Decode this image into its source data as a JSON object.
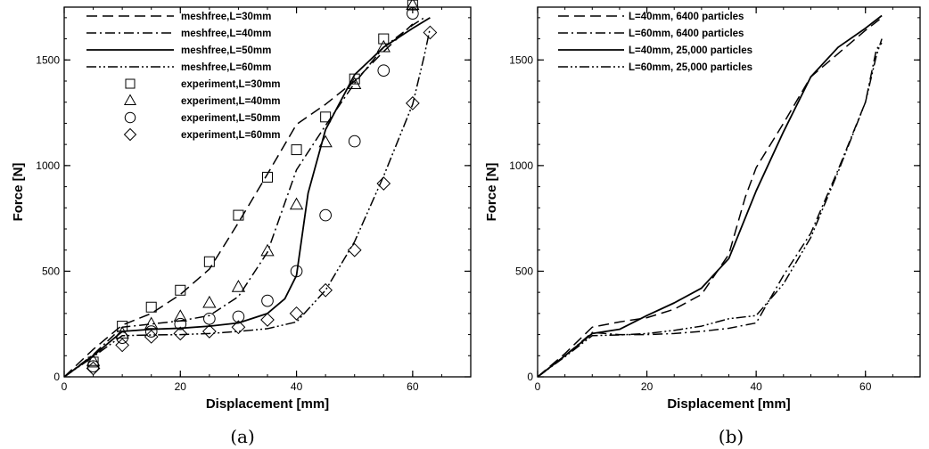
{
  "chart_data": [
    {
      "type": "line",
      "panel_label": "(a)",
      "xlabel": "Displacement [mm]",
      "ylabel": "Force [N]",
      "xlim": [
        0,
        70
      ],
      "ylim": [
        0,
        1750
      ],
      "xticks": [
        0,
        20,
        40,
        60
      ],
      "yticks": [
        0,
        500,
        1000,
        1500
      ],
      "minor_x_step": 5,
      "minor_y_step": 100,
      "legend_position": "top-left",
      "series": [
        {
          "name": "meshfree,L=30mm",
          "style": "dashed",
          "x": [
            0,
            5,
            10,
            15,
            20,
            25,
            30,
            35,
            40,
            45,
            50,
            55,
            60
          ],
          "y": [
            0,
            130,
            245,
            300,
            390,
            510,
            730,
            960,
            1195,
            1290,
            1400,
            1540,
            1670
          ]
        },
        {
          "name": "meshfree,L=40mm",
          "style": "dashdot",
          "x": [
            0,
            5,
            10,
            15,
            20,
            25,
            30,
            35,
            40,
            45,
            50,
            55,
            60,
            62
          ],
          "y": [
            0,
            105,
            235,
            250,
            265,
            290,
            380,
            590,
            980,
            1190,
            1390,
            1560,
            1665,
            1700
          ]
        },
        {
          "name": "meshfree,L=50mm",
          "style": "solid",
          "x": [
            0,
            5,
            10,
            15,
            20,
            25,
            30,
            35,
            38,
            40,
            42,
            45,
            50,
            55,
            60,
            63
          ],
          "y": [
            0,
            100,
            215,
            225,
            230,
            240,
            255,
            300,
            370,
            480,
            870,
            1170,
            1430,
            1560,
            1650,
            1700
          ]
        },
        {
          "name": "meshfree,L=60mm",
          "style": "dashdotdot",
          "x": [
            0,
            5,
            10,
            15,
            20,
            25,
            30,
            35,
            40,
            45,
            50,
            55,
            60,
            62,
            63
          ],
          "y": [
            0,
            95,
            195,
            198,
            200,
            205,
            215,
            228,
            260,
            410,
            640,
            950,
            1290,
            1520,
            1650
          ]
        },
        {
          "name": "experiment,L=30mm",
          "marker": "square",
          "x": [
            5,
            10,
            15,
            20,
            25,
            30,
            35,
            40,
            45,
            50,
            55,
            60
          ],
          "y": [
            70,
            240,
            330,
            410,
            545,
            765,
            945,
            1075,
            1230,
            1410,
            1600,
            1760
          ]
        },
        {
          "name": "experiment,L=40mm",
          "marker": "triangle",
          "x": [
            5,
            10,
            15,
            20,
            25,
            30,
            35,
            40,
            45,
            50,
            55,
            60
          ],
          "y": [
            75,
            205,
            250,
            285,
            350,
            425,
            595,
            815,
            1110,
            1385,
            1560,
            1760
          ]
        },
        {
          "name": "experiment,L=50mm",
          "marker": "circle",
          "x": [
            5,
            10,
            15,
            20,
            25,
            30,
            35,
            40,
            45,
            50,
            55,
            60
          ],
          "y": [
            50,
            185,
            215,
            250,
            275,
            285,
            360,
            500,
            765,
            1115,
            1450,
            1720
          ]
        },
        {
          "name": "experiment,L=60mm",
          "marker": "diamond",
          "x": [
            5,
            10,
            15,
            20,
            25,
            30,
            35,
            40,
            45,
            50,
            55,
            60,
            63
          ],
          "y": [
            40,
            150,
            190,
            205,
            215,
            235,
            270,
            300,
            410,
            600,
            915,
            1295,
            1630
          ]
        }
      ]
    },
    {
      "type": "line",
      "panel_label": "(b)",
      "xlabel": "Displacement [mm]",
      "ylabel": "Force [N]",
      "xlim": [
        0,
        70
      ],
      "ylim": [
        0,
        1750
      ],
      "xticks": [
        0,
        20,
        40,
        60
      ],
      "yticks": [
        0,
        500,
        1000,
        1500
      ],
      "minor_x_step": 5,
      "minor_y_step": 100,
      "legend_position": "top-left",
      "series": [
        {
          "name": "L=40mm, 6400 particles",
          "style": "dashed",
          "x": [
            0,
            5,
            10,
            15,
            20,
            25,
            30,
            35,
            38,
            40,
            45,
            50,
            55,
            60,
            63
          ],
          "y": [
            0,
            110,
            235,
            260,
            280,
            320,
            390,
            580,
            850,
            990,
            1200,
            1420,
            1530,
            1640,
            1700
          ]
        },
        {
          "name": "L=60mm, 6400 particles",
          "style": "dashdot",
          "x": [
            0,
            5,
            10,
            15,
            20,
            25,
            30,
            35,
            40,
            45,
            50,
            55,
            60,
            62,
            63
          ],
          "y": [
            0,
            100,
            210,
            200,
            200,
            205,
            215,
            230,
            255,
            480,
            680,
            980,
            1300,
            1550,
            1580
          ]
        },
        {
          "name": "L=40mm, 25,000 particles",
          "style": "solid",
          "x": [
            0,
            5,
            10,
            15,
            20,
            25,
            30,
            35,
            40,
            45,
            50,
            55,
            60,
            63
          ],
          "y": [
            0,
            100,
            205,
            225,
            290,
            350,
            420,
            560,
            880,
            1160,
            1420,
            1560,
            1650,
            1710
          ]
        },
        {
          "name": "L=60mm, 25,000 particles",
          "style": "dashdotdot",
          "x": [
            0,
            5,
            10,
            15,
            20,
            25,
            30,
            35,
            40,
            45,
            50,
            55,
            60,
            62,
            63
          ],
          "y": [
            0,
            95,
            195,
            198,
            205,
            220,
            240,
            275,
            290,
            440,
            660,
            970,
            1300,
            1520,
            1600
          ]
        }
      ]
    }
  ]
}
